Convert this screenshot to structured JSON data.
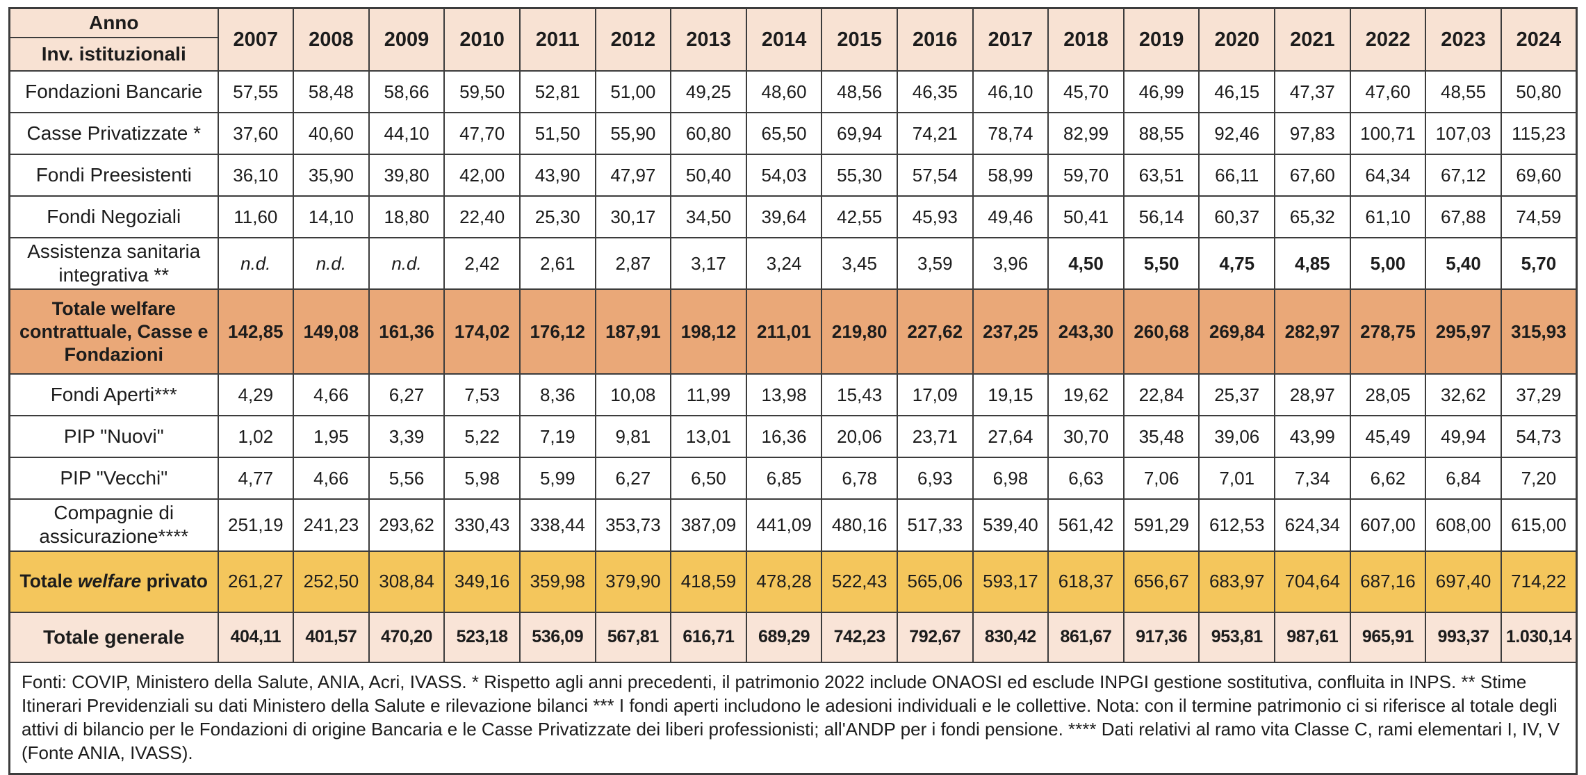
{
  "table": {
    "corner": {
      "top_label": "Anno",
      "bottom_label": "Inv. istituzionali"
    },
    "years": [
      "2007",
      "2008",
      "2009",
      "2010",
      "2011",
      "2012",
      "2013",
      "2014",
      "2015",
      "2016",
      "2017",
      "2018",
      "2019",
      "2020",
      "2021",
      "2022",
      "2023",
      "2024"
    ],
    "rows": [
      {
        "label": "Fondazioni Bancarie",
        "type": "normal",
        "values": [
          "57,55",
          "58,48",
          "58,66",
          "59,50",
          "52,81",
          "51,00",
          "49,25",
          "48,60",
          "48,56",
          "46,35",
          "46,10",
          "45,70",
          "46,99",
          "46,15",
          "47,37",
          "47,60",
          "48,55",
          "50,80"
        ]
      },
      {
        "label": "Casse Privatizzate *",
        "type": "normal",
        "values": [
          "37,60",
          "40,60",
          "44,10",
          "47,70",
          "51,50",
          "55,90",
          "60,80",
          "65,50",
          "69,94",
          "74,21",
          "78,74",
          "82,99",
          "88,55",
          "92,46",
          "97,83",
          "100,71",
          "107,03",
          "115,23"
        ]
      },
      {
        "label": "Fondi Preesistenti",
        "type": "normal",
        "values": [
          "36,10",
          "35,90",
          "39,80",
          "42,00",
          "43,90",
          "47,97",
          "50,40",
          "54,03",
          "55,30",
          "57,54",
          "58,99",
          "59,70",
          "63,51",
          "66,11",
          "67,60",
          "64,34",
          "67,12",
          "69,60"
        ]
      },
      {
        "label": "Fondi Negoziali",
        "type": "normal",
        "values": [
          "11,60",
          "14,10",
          "18,80",
          "22,40",
          "25,30",
          "30,17",
          "34,50",
          "39,64",
          "42,55",
          "45,93",
          "49,46",
          "50,41",
          "56,14",
          "60,37",
          "65,32",
          "61,10",
          "67,88",
          "74,59"
        ]
      },
      {
        "label": "Assistenza sanitaria integrativa **",
        "type": "normal",
        "bold_from_index": 11,
        "values": [
          "n.d.",
          "n.d.",
          "n.d.",
          "2,42",
          "2,61",
          "2,87",
          "3,17",
          "3,24",
          "3,45",
          "3,59",
          "3,96",
          "4,50",
          "5,50",
          "4,75",
          "4,85",
          "5,00",
          "5,40",
          "5,70"
        ]
      },
      {
        "label": "Totale welfare contrattuale, Casse e Fondazioni",
        "type": "total-orange",
        "values": [
          "142,85",
          "149,08",
          "161,36",
          "174,02",
          "176,12",
          "187,91",
          "198,12",
          "211,01",
          "219,80",
          "227,62",
          "237,25",
          "243,30",
          "260,68",
          "269,84",
          "282,97",
          "278,75",
          "295,97",
          "315,93"
        ]
      },
      {
        "label": "Fondi Aperti***",
        "type": "normal",
        "values": [
          "4,29",
          "4,66",
          "6,27",
          "7,53",
          "8,36",
          "10,08",
          "11,99",
          "13,98",
          "15,43",
          "17,09",
          "19,15",
          "19,62",
          "22,84",
          "25,37",
          "28,97",
          "28,05",
          "32,62",
          "37,29"
        ]
      },
      {
        "label": "PIP \"Nuovi\"",
        "type": "normal",
        "values": [
          "1,02",
          "1,95",
          "3,39",
          "5,22",
          "7,19",
          "9,81",
          "13,01",
          "16,36",
          "20,06",
          "23,71",
          "27,64",
          "30,70",
          "35,48",
          "39,06",
          "43,99",
          "45,49",
          "49,94",
          "54,73"
        ]
      },
      {
        "label": "PIP \"Vecchi\"",
        "type": "normal",
        "values": [
          "4,77",
          "4,66",
          "5,56",
          "5,98",
          "5,99",
          "6,27",
          "6,50",
          "6,85",
          "6,78",
          "6,93",
          "6,98",
          "6,63",
          "7,06",
          "7,01",
          "7,34",
          "6,62",
          "6,84",
          "7,20"
        ]
      },
      {
        "label": "Compagnie di assicurazione****",
        "type": "normal",
        "values": [
          "251,19",
          "241,23",
          "293,62",
          "330,43",
          "338,44",
          "353,73",
          "387,09",
          "441,09",
          "480,16",
          "517,33",
          "539,40",
          "561,42",
          "591,29",
          "612,53",
          "624,34",
          "607,00",
          "608,00",
          "615,00"
        ]
      },
      {
        "label": "Totale welfare privato",
        "type": "total-yellow",
        "label_parts": [
          {
            "text": "Totale ",
            "italic": false
          },
          {
            "text": "welfare",
            "italic": true
          },
          {
            "text": " privato",
            "italic": false
          }
        ],
        "values": [
          "261,27",
          "252,50",
          "308,84",
          "349,16",
          "359,98",
          "379,90",
          "418,59",
          "478,28",
          "522,43",
          "565,06",
          "593,17",
          "618,37",
          "656,67",
          "683,97",
          "704,64",
          "687,16",
          "697,40",
          "714,22"
        ]
      },
      {
        "label": "Totale generale",
        "type": "total-light",
        "values": [
          "404,11",
          "401,57",
          "470,20",
          "523,18",
          "536,09",
          "567,81",
          "616,71",
          "689,29",
          "742,23",
          "792,67",
          "830,42",
          "861,67",
          "917,36",
          "953,81",
          "987,61",
          "965,91",
          "993,37",
          "1.030,14"
        ]
      }
    ],
    "footnote": "Fonti: COVIP, Ministero della Salute, ANIA, Acri, IVASS. * Rispetto agli anni precedenti, il patrimonio 2022 include ONAOSI ed esclude INPGI gestione sostitutiva, confluita in INPS. ** Stime Itinerari Previdenziali su dati Ministero della Salute e rilevazione bilanci *** I fondi aperti includono le adesioni individuali e le collettive. Nota: con il termine patrimonio ci si riferisce al totale degli attivi di bilancio per le Fondazioni di origine Bancaria e le Casse Privatizzate dei liberi professionisti; all'ANDP per i fondi pensione. **** Dati relativi al ramo vita Classe C, rami elementari I, IV, V (Fonte ANIA, IVASS)."
  },
  "colors": {
    "border": "#3c3c3c",
    "header_bg": "#f8e2d3",
    "orange_total_bg": "#eaa878",
    "yellow_total_bg": "#f4c65c",
    "light_total_bg": "#f9e4d7"
  }
}
